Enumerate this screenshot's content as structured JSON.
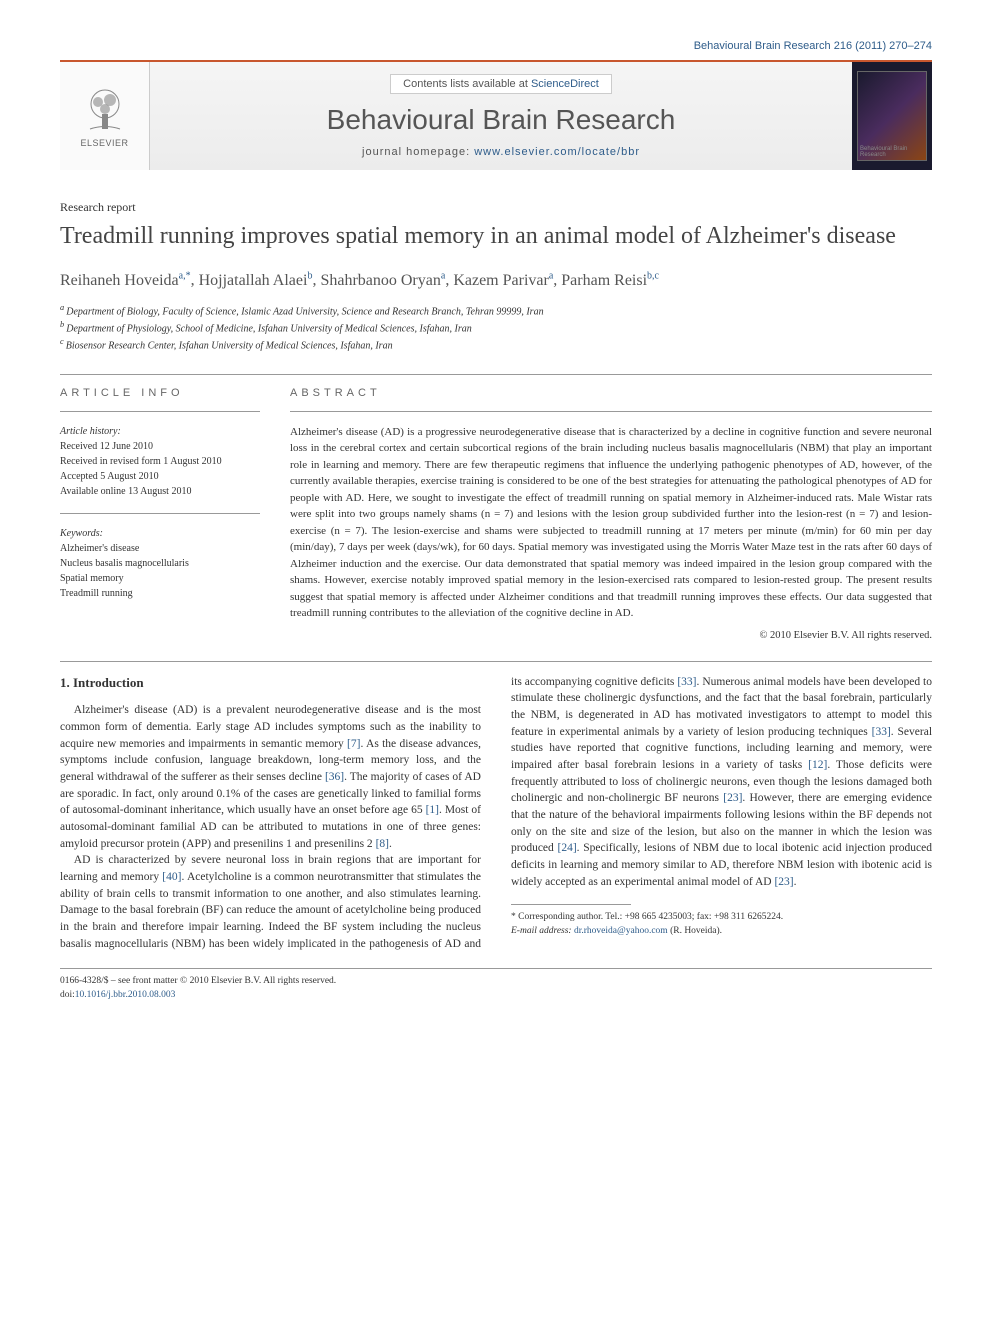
{
  "journal_ref": "Behavioural Brain Research 216 (2011) 270–274",
  "header": {
    "contents_line_pre": "Contents lists available at ",
    "contents_line_link": "ScienceDirect",
    "journal_name": "Behavioural Brain Research",
    "homepage_pre": "journal homepage: ",
    "homepage_url": "www.elsevier.com/locate/bbr",
    "publisher": "ELSEVIER",
    "cover_label": "Behavioural Brain Research"
  },
  "article_type": "Research report",
  "title": "Treadmill running improves spatial memory in an animal model of Alzheimer's disease",
  "authors_html": "Reihaneh Hoveida|a,*|, Hojjatallah Alaei|b|, Shahrbanoo Oryan|a|, Kazem Parivar|a|, Parham Reisi|b,c|",
  "authors": [
    {
      "name": "Reihaneh Hoveida",
      "sup": "a,*"
    },
    {
      "name": "Hojjatallah Alaei",
      "sup": "b"
    },
    {
      "name": "Shahrbanoo Oryan",
      "sup": "a"
    },
    {
      "name": "Kazem Parivar",
      "sup": "a"
    },
    {
      "name": "Parham Reisi",
      "sup": "b,c"
    }
  ],
  "affiliations": [
    {
      "sup": "a",
      "text": "Department of Biology, Faculty of Science, Islamic Azad University, Science and Research Branch, Tehran 99999, Iran"
    },
    {
      "sup": "b",
      "text": "Department of Physiology, School of Medicine, Isfahan University of Medical Sciences, Isfahan, Iran"
    },
    {
      "sup": "c",
      "text": "Biosensor Research Center, Isfahan University of Medical Sciences, Isfahan, Iran"
    }
  ],
  "article_info_label": "article info",
  "abstract_label": "abstract",
  "history": {
    "title": "Article history:",
    "lines": [
      "Received 12 June 2010",
      "Received in revised form 1 August 2010",
      "Accepted 5 August 2010",
      "Available online 13 August 2010"
    ]
  },
  "keywords": {
    "title": "Keywords:",
    "items": [
      "Alzheimer's disease",
      "Nucleus basalis magnocellularis",
      "Spatial memory",
      "Treadmill running"
    ]
  },
  "abstract": "Alzheimer's disease (AD) is a progressive neurodegenerative disease that is characterized by a decline in cognitive function and severe neuronal loss in the cerebral cortex and certain subcortical regions of the brain including nucleus basalis magnocellularis (NBM) that play an important role in learning and memory. There are few therapeutic regimens that influence the underlying pathogenic phenotypes of AD, however, of the currently available therapies, exercise training is considered to be one of the best strategies for attenuating the pathological phenotypes of AD for people with AD. Here, we sought to investigate the effect of treadmill running on spatial memory in Alzheimer-induced rats. Male Wistar rats were split into two groups namely shams (n = 7) and lesions with the lesion group subdivided further into the lesion-rest (n = 7) and lesion-exercise (n = 7). The lesion-exercise and shams were subjected to treadmill running at 17 meters per minute (m/min) for 60 min per day (min/day), 7 days per week (days/wk), for 60 days. Spatial memory was investigated using the Morris Water Maze test in the rats after 60 days of Alzheimer induction and the exercise. Our data demonstrated that spatial memory was indeed impaired in the lesion group compared with the shams. However, exercise notably improved spatial memory in the lesion-exercised rats compared to lesion-rested group. The present results suggest that spatial memory is affected under Alzheimer conditions and that treadmill running improves these effects. Our data suggested that treadmill running contributes to the alleviation of the cognitive decline in AD.",
  "copyright": "© 2010 Elsevier B.V. All rights reserved.",
  "intro_heading": "1. Introduction",
  "intro_paragraphs": [
    "Alzheimer's disease (AD) is a prevalent neurodegenerative disease and is the most common form of dementia. Early stage AD includes symptoms such as the inability to acquire new memories and impairments in semantic memory [7]. As the disease advances, symptoms include confusion, language breakdown, long-term memory loss, and the general withdrawal of the sufferer as their senses decline [36]. The majority of cases of AD are sporadic. In fact, only around 0.1% of the cases are genetically linked to familial forms of autosomal-dominant inheritance, which usually have an onset before age 65 [1]. Most of autosomal-dominant familial AD can be attributed to mutations in one of three genes: amyloid precursor protein (APP) and presenilins 1 and presenilins 2 [8].",
    "AD is characterized by severe neuronal loss in brain regions that are important for learning and memory [40]. Acetylcholine is a common neurotransmitter that stimulates the ability of brain cells to transmit information to one another, and also stimulates learning. Damage to the basal forebrain (BF) can reduce the amount of acetylcholine being produced in the brain and therefore impair learning. Indeed the BF system including the nucleus basalis magnocellularis (NBM) has been widely implicated in the pathogenesis of AD and its accompanying cognitive deficits [33]. Numerous animal models have been developed to stimulate these cholinergic dysfunctions, and the fact that the basal forebrain, particularly the NBM, is degenerated in AD has motivated investigators to attempt to model this feature in experimental animals by a variety of lesion producing techniques [33]. Several studies have reported that cognitive functions, including learning and memory, were impaired after basal forebrain lesions in a variety of tasks [12]. Those deficits were frequently attributed to loss of cholinergic neurons, even though the lesions damaged both cholinergic and non-cholinergic BF neurons [23]. However, there are emerging evidence that the nature of the behavioral impairments following lesions within the BF depends not only on the site and size of the lesion, but also on the manner in which the lesion was produced [24]. Specifically, lesions of NBM due to local ibotenic acid injection produced deficits in learning and memory similar to AD, therefore NBM lesion with ibotenic acid is widely accepted as an experimental animal model of AD [23]."
  ],
  "footnote": {
    "corr": "* Corresponding author. Tel.: +98 665 4235003; fax: +98 311 6265224.",
    "email_label": "E-mail address:",
    "email": "dr.rhoveida@yahoo.com",
    "email_suffix": "(R. Hoveida)."
  },
  "bottom": {
    "issn": "0166-4328/$ – see front matter © 2010 Elsevier B.V. All rights reserved.",
    "doi_label": "doi:",
    "doi": "10.1016/j.bbr.2010.08.003"
  },
  "refs": [
    "[7]",
    "[36]",
    "[1]",
    "[8]",
    "[40]",
    "[33]",
    "[33]",
    "[12]",
    "[23]",
    "[24]",
    "[23]"
  ],
  "colors": {
    "accent": "#c8572e",
    "link": "#2e5c8a",
    "text": "#333333",
    "muted": "#666666"
  }
}
